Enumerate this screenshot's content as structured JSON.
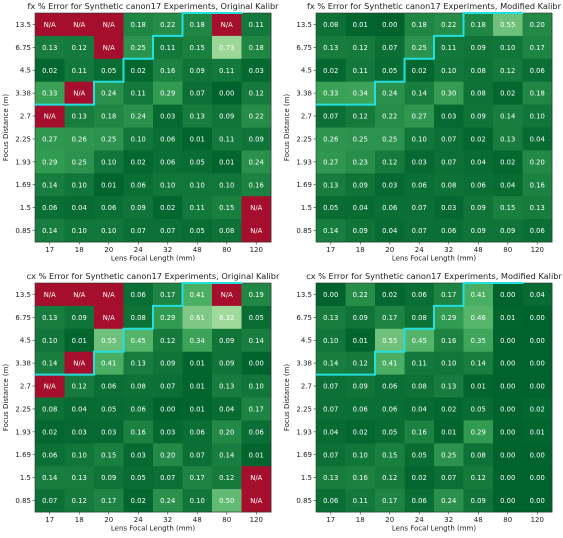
{
  "chart_data": [
    {
      "type": "heatmap",
      "title": "fx % Error for Synthetic canon17 Experiments, Original Kalibr",
      "xlabel": "Lens Focal Length (mm)",
      "ylabel": "Focus Distance (m)",
      "x": [
        "17",
        "18",
        "20",
        "24",
        "32",
        "48",
        "80",
        "120"
      ],
      "y": [
        "13.5",
        "6.75",
        "4.5",
        "3.38",
        "2.7",
        "2.25",
        "1.93",
        "1.69",
        "1.5",
        "0.85"
      ],
      "values": [
        [
          "N/A",
          "N/A",
          "N/A",
          "0.18",
          "0.22",
          "0.18",
          "N/A",
          "0.11"
        ],
        [
          "0.13",
          "0.12",
          "N/A",
          "0.25",
          "0.11",
          "0.15",
          "0.73",
          "0.18"
        ],
        [
          "0.02",
          "0.11",
          "0.05",
          "0.02",
          "0.16",
          "0.09",
          "0.11",
          "0.03"
        ],
        [
          "0.33",
          "N/A",
          "0.24",
          "0.11",
          "0.29",
          "0.07",
          "0.00",
          "0.12"
        ],
        [
          "N/A",
          "0.13",
          "0.18",
          "0.24",
          "0.03",
          "0.13",
          "0.09",
          "0.22"
        ],
        [
          "0.27",
          "0.26",
          "0.25",
          "0.10",
          "0.06",
          "0.01",
          "0.11",
          "0.09"
        ],
        [
          "0.29",
          "0.25",
          "0.10",
          "0.02",
          "0.06",
          "0.05",
          "0.01",
          "0.24"
        ],
        [
          "0.14",
          "0.10",
          "0.01",
          "0.06",
          "0.10",
          "0.10",
          "0.10",
          "0.16"
        ],
        [
          "0.06",
          "0.04",
          "0.06",
          "0.09",
          "0.02",
          "0.11",
          "0.15",
          "N/A"
        ],
        [
          "0.14",
          "0.10",
          "0.10",
          "0.07",
          "0.07",
          "0.05",
          "0.08",
          "N/A"
        ]
      ]
    },
    {
      "type": "heatmap",
      "title": "fx % Error for Synthetic canon17 Experiments, Modified Kalibr",
      "xlabel": "Lens Focal Length (mm)",
      "ylabel": "Focus Distance (m)",
      "x": [
        "17",
        "18",
        "20",
        "24",
        "32",
        "48",
        "80",
        "120"
      ],
      "y": [
        "13.5",
        "6.75",
        "4.5",
        "3.38",
        "2.7",
        "2.25",
        "1.93",
        "1.69",
        "1.5",
        "0.85"
      ],
      "values": [
        [
          "0.08",
          "0.01",
          "0.00",
          "0.18",
          "0.22",
          "0.18",
          "0.55",
          "0.20"
        ],
        [
          "0.13",
          "0.12",
          "0.07",
          "0.25",
          "0.11",
          "0.09",
          "0.10",
          "0.17"
        ],
        [
          "0.02",
          "0.11",
          "0.05",
          "0.02",
          "0.10",
          "0.08",
          "0.12",
          "0.06"
        ],
        [
          "0.33",
          "0.34",
          "0.24",
          "0.14",
          "0.30",
          "0.08",
          "0.02",
          "0.18"
        ],
        [
          "0.07",
          "0.12",
          "0.22",
          "0.27",
          "0.03",
          "0.09",
          "0.14",
          "0.10"
        ],
        [
          "0.26",
          "0.25",
          "0.25",
          "0.10",
          "0.07",
          "0.02",
          "0.13",
          "0.04"
        ],
        [
          "0.27",
          "0.23",
          "0.12",
          "0.03",
          "0.07",
          "0.04",
          "0.02",
          "0.20"
        ],
        [
          "0.13",
          "0.09",
          "0.03",
          "0.06",
          "0.08",
          "0.06",
          "0.04",
          "0.16"
        ],
        [
          "0.05",
          "0.04",
          "0.06",
          "0.07",
          "0.03",
          "0.09",
          "0.15",
          "0.13"
        ],
        [
          "0.14",
          "0.09",
          "0.04",
          "0.07",
          "0.06",
          "0.09",
          "0.09",
          "0.06"
        ]
      ]
    },
    {
      "type": "heatmap",
      "title": "cx % Error for Synthetic canon17 Experiments, Original Kalibr",
      "xlabel": "Lens Focal Length (mm)",
      "ylabel": "Focus Distance (m)",
      "x": [
        "17",
        "18",
        "20",
        "24",
        "32",
        "48",
        "80",
        "120"
      ],
      "y": [
        "13.5",
        "6.75",
        "4.5",
        "3.38",
        "2.7",
        "2.25",
        "1.93",
        "1.69",
        "1.5",
        "0.85"
      ],
      "values": [
        [
          "N/A",
          "N/A",
          "N/A",
          "0.06",
          "0.17",
          "0.41",
          "N/A",
          "0.19"
        ],
        [
          "0.13",
          "0.09",
          "N/A",
          "0.08",
          "0.29",
          "0.61",
          "6.32",
          "0.05"
        ],
        [
          "0.10",
          "0.01",
          "0.55",
          "0.45",
          "0.12",
          "0.34",
          "0.09",
          "0.14"
        ],
        [
          "0.14",
          "N/A",
          "0.41",
          "0.13",
          "0.09",
          "0.01",
          "0.09",
          "0.00"
        ],
        [
          "N/A",
          "0.12",
          "0.06",
          "0.08",
          "0.07",
          "0.01",
          "0.13",
          "0.10"
        ],
        [
          "0.08",
          "0.04",
          "0.05",
          "0.06",
          "0.00",
          "0.01",
          "0.04",
          "0.17"
        ],
        [
          "0.02",
          "0.03",
          "0.03",
          "0.16",
          "0.03",
          "0.06",
          "0.20",
          "0.06"
        ],
        [
          "0.06",
          "0.10",
          "0.15",
          "0.03",
          "0.20",
          "0.07",
          "0.14",
          "0.01"
        ],
        [
          "0.14",
          "0.13",
          "0.09",
          "0.05",
          "0.07",
          "0.17",
          "0.12",
          "N/A"
        ],
        [
          "0.07",
          "0.12",
          "0.17",
          "0.02",
          "0.24",
          "0.10",
          "0.50",
          "N/A"
        ]
      ]
    },
    {
      "type": "heatmap",
      "title": "cx % Error for Synthetic canon17 Experiments, Modified Kalibr",
      "xlabel": "Lens Focal Length (mm)",
      "ylabel": "Focus Distance (m)",
      "x": [
        "17",
        "18",
        "20",
        "24",
        "32",
        "48",
        "80",
        "120"
      ],
      "y": [
        "13.5",
        "6.75",
        "4.5",
        "3.38",
        "2.7",
        "2.25",
        "1.93",
        "1.69",
        "1.5",
        "0.85"
      ],
      "values": [
        [
          "0.00",
          "0.22",
          "0.02",
          "0.06",
          "0.17",
          "0.41",
          "0.00",
          "0.04"
        ],
        [
          "0.13",
          "0.09",
          "0.17",
          "0.08",
          "0.29",
          "0.46",
          "0.01",
          "0.00"
        ],
        [
          "0.10",
          "0.01",
          "0.55",
          "0.45",
          "0.16",
          "0.35",
          "0.00",
          "0.00"
        ],
        [
          "0.14",
          "0.12",
          "0.41",
          "0.11",
          "0.10",
          "0.14",
          "0.00",
          "0.00"
        ],
        [
          "0.07",
          "0.09",
          "0.06",
          "0.08",
          "0.13",
          "0.01",
          "0.00",
          "0.00"
        ],
        [
          "0.07",
          "0.06",
          "0.06",
          "0.04",
          "0.02",
          "0.05",
          "0.00",
          "0.02"
        ],
        [
          "0.04",
          "0.02",
          "0.05",
          "0.16",
          "0.01",
          "0.29",
          "0.00",
          "0.01"
        ],
        [
          "0.07",
          "0.10",
          "0.15",
          "0.05",
          "0.25",
          "0.08",
          "0.00",
          "0.00"
        ],
        [
          "0.13",
          "0.16",
          "0.12",
          "0.02",
          "0.07",
          "0.12",
          "0.00",
          "0.00"
        ],
        [
          "0.06",
          "0.11",
          "0.17",
          "0.06",
          "0.24",
          "0.09",
          "0.00",
          "0.00"
        ]
      ]
    }
  ],
  "colors": {
    "na_cell": "#a50f2d",
    "scale_low": "#00632d",
    "scale_mid": "#41ab5d",
    "scale_high": "#a1d99b",
    "boundary_line": "#22e0e0",
    "cell_text": "#ffffff",
    "axis_text": "#222222"
  }
}
